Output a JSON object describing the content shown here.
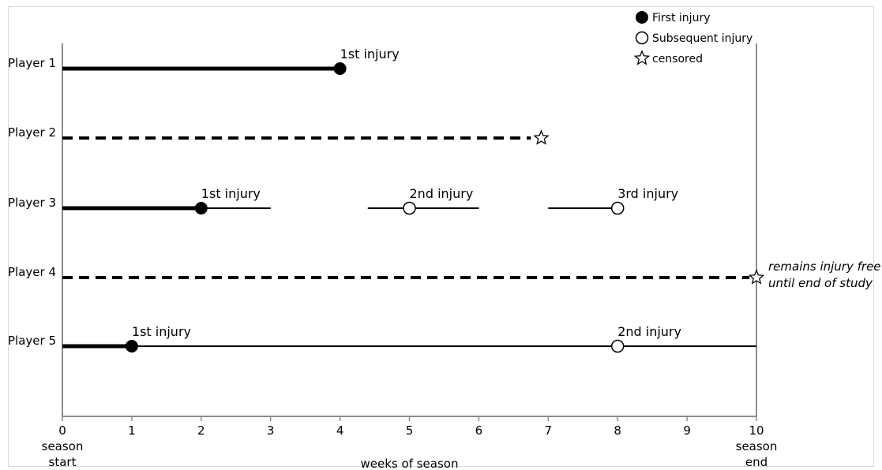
{
  "chart_data": {
    "type": "timeline",
    "xlabel": "weeks of season",
    "xlim": [
      0,
      10
    ],
    "x_ticks": [
      0,
      1,
      2,
      3,
      4,
      5,
      6,
      7,
      8,
      9,
      10
    ],
    "x_tick_labels": [
      "0",
      "1",
      "2",
      "3",
      "4",
      "5",
      "6",
      "7",
      "8",
      "9",
      "10"
    ],
    "x_tick_sublabels": {
      "start": [
        "season",
        "start"
      ],
      "end": [
        "season",
        "end"
      ]
    },
    "legend": {
      "placement": "top-right",
      "items": [
        {
          "marker": "filled-circle",
          "label": "First injury"
        },
        {
          "marker": "open-circle",
          "label": "Subsequent injury"
        },
        {
          "marker": "star",
          "label": "censored"
        }
      ]
    },
    "players": [
      {
        "label": "Player 1",
        "segments": [
          {
            "x_start": 0,
            "x_end": 4,
            "style": "thick"
          }
        ],
        "events": [
          {
            "x": 4,
            "marker": "filled-circle",
            "label": "1st injury"
          }
        ]
      },
      {
        "label": "Player 2",
        "segments": [
          {
            "x_start": 0,
            "x_end": 6.75,
            "style": "dashed"
          }
        ],
        "events": [
          {
            "x": 6.9,
            "marker": "star",
            "label": ""
          }
        ]
      },
      {
        "label": "Player 3",
        "segments": [
          {
            "x_start": 0,
            "x_end": 2,
            "style": "thick"
          },
          {
            "x_start": 2,
            "x_end": 3,
            "style": "thin"
          },
          {
            "x_start": 4.4,
            "x_end": 6,
            "style": "thin"
          },
          {
            "x_start": 7,
            "x_end": 8,
            "style": "thin"
          }
        ],
        "events": [
          {
            "x": 2,
            "marker": "filled-circle",
            "label": "1st injury"
          },
          {
            "x": 5,
            "marker": "open-circle",
            "label": "2nd injury"
          },
          {
            "x": 8,
            "marker": "open-circle",
            "label": "3rd injury"
          }
        ]
      },
      {
        "label": "Player 4",
        "segments": [
          {
            "x_start": 0,
            "x_end": 9.9,
            "style": "dashed"
          }
        ],
        "events": [
          {
            "x": 10,
            "marker": "star",
            "label": ""
          }
        ],
        "note": [
          "remains injury free",
          "until end of study"
        ]
      },
      {
        "label": "Player 5",
        "segments": [
          {
            "x_start": 0,
            "x_end": 1,
            "style": "thick"
          },
          {
            "x_start": 1,
            "x_end": 10,
            "style": "thin"
          }
        ],
        "events": [
          {
            "x": 1,
            "marker": "filled-circle",
            "label": "1st injury"
          },
          {
            "x": 8,
            "marker": "open-circle",
            "label": "2nd injury"
          }
        ]
      }
    ]
  }
}
